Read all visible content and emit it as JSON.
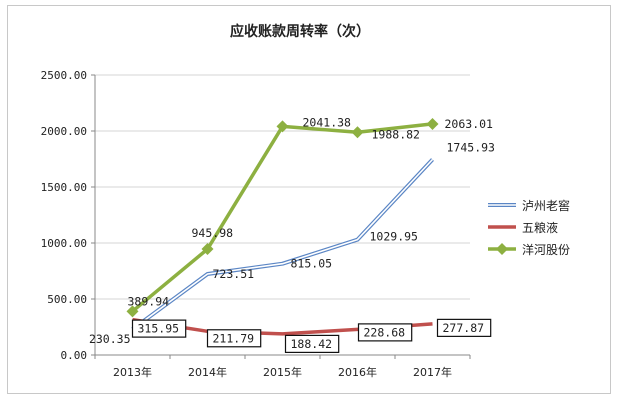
{
  "chart_data": {
    "type": "line",
    "title": "应收账款周转率（次）",
    "categories": [
      "2013年",
      "2014年",
      "2015年",
      "2016年",
      "2017年"
    ],
    "ylim": [
      0,
      2500
    ],
    "yticks": [
      "0.00",
      "500.00",
      "1000.00",
      "1500.00",
      "2000.00",
      "2500.00"
    ],
    "grid": true,
    "legend_position": "right",
    "series": [
      {
        "name": "泸州老窖",
        "values": [
          230.35,
          723.51,
          815.05,
          1029.95,
          1745.93
        ],
        "labels": [
          "230.35",
          "723.51",
          "815.05",
          "1029.95",
          "1745.93"
        ],
        "color": "#5b86c5",
        "style": "double-line"
      },
      {
        "name": "五粮液",
        "values": [
          315.95,
          211.79,
          188.42,
          228.68,
          277.87
        ],
        "labels": [
          "315.95",
          "211.79",
          "188.42",
          "228.68",
          "277.87"
        ],
        "color": "#c0504d",
        "style": "boxed-labels"
      },
      {
        "name": "洋河股份",
        "values": [
          389.94,
          945.98,
          2041.38,
          1988.82,
          2063.01
        ],
        "labels": [
          "389.94",
          "945.98",
          "2041.38",
          "1988.82",
          "2063.01"
        ],
        "color": "#8db041",
        "style": "diamond-markers"
      }
    ]
  }
}
